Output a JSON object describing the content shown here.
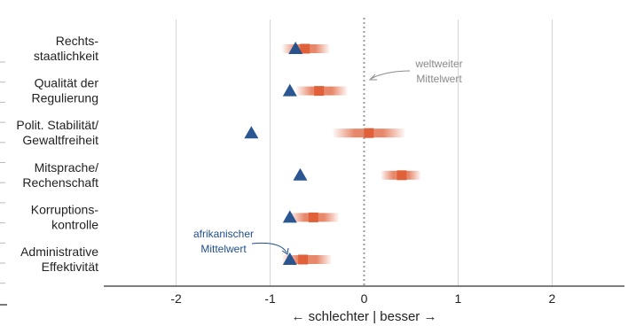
{
  "chart_data": {
    "type": "dot-range",
    "categories": [
      [
        "Rechts-",
        "staatlichkeit"
      ],
      [
        "Qualität der",
        "Regulierung"
      ],
      [
        "Polit. Stabilität/",
        "Gewaltfreiheit"
      ],
      [
        "Mitsprache/",
        "Rechenschaft"
      ],
      [
        "Korruptions-",
        "kontrolle"
      ],
      [
        "Administrative",
        "Effektivität"
      ]
    ],
    "series": [
      {
        "marker": "square-with-range",
        "color": "#e0603a",
        "values": [
          -0.63,
          -0.48,
          0.05,
          0.4,
          -0.54,
          -0.65
        ],
        "ranges": [
          [
            -0.87,
            -0.37
          ],
          [
            -0.72,
            -0.18
          ],
          [
            -0.33,
            0.43
          ],
          [
            0.18,
            0.6
          ],
          [
            -0.79,
            -0.27
          ],
          [
            -0.87,
            -0.35
          ]
        ]
      },
      {
        "marker": "triangle",
        "color": "#1f4e8c",
        "values": [
          -0.73,
          -0.79,
          -1.2,
          -0.68,
          -0.79,
          -0.79
        ]
      }
    ],
    "xlim": [
      -2.77,
      2.77
    ],
    "xticks": [
      "-2",
      "-1",
      "0",
      "1",
      "2"
    ],
    "xlabel": "← schlechter | besser →",
    "grid": true,
    "reference_line": 0,
    "annotations": {
      "world_mean": [
        "weltweiter",
        "Mittelwert"
      ],
      "africa_mean": [
        "afrikanischer",
        "Mittelwert"
      ]
    }
  }
}
